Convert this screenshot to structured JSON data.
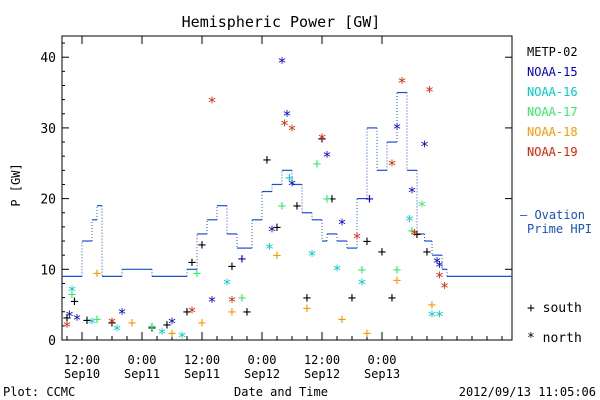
{
  "chart_data": {
    "type": "scatter",
    "title": "Hemispheric Power [GW]",
    "xlabel": "Date and Time",
    "ylabel": "P [GW]",
    "xlim": [
      "2012-09-10 08:00",
      "2012-09-14 02:00"
    ],
    "ylim": [
      0,
      43
    ],
    "yticks": [
      0,
      10,
      20,
      30,
      40
    ],
    "xticks": [
      {
        "time": "2012-09-10 12:00",
        "line1": "12:00",
        "line2": "Sep10"
      },
      {
        "time": "2012-09-11 00:00",
        "line1": "0:00",
        "line2": "Sep11"
      },
      {
        "time": "2012-09-11 12:00",
        "line1": "12:00",
        "line2": "Sep11"
      },
      {
        "time": "2012-09-12 00:00",
        "line1": "0:00",
        "line2": "Sep12"
      },
      {
        "time": "2012-09-12 12:00",
        "line1": "12:00",
        "line2": "Sep12"
      },
      {
        "time": "2012-09-13 00:00",
        "line1": "0:00",
        "line2": "Sep13"
      }
    ],
    "marker_legend": [
      {
        "symbol": "+",
        "label": "south"
      },
      {
        "symbol": "*",
        "label": "north"
      }
    ],
    "series": [
      {
        "name": "METP-02",
        "color": "#000000",
        "points": [
          [
            "2012-09-10 09:00",
            3.2,
            "+"
          ],
          [
            "2012-09-10 10:30",
            5.5,
            "+"
          ],
          [
            "2012-09-10 13:00",
            2.8,
            "+"
          ],
          [
            "2012-09-10 18:00",
            2.5,
            "+"
          ],
          [
            "2012-09-11 02:00",
            1.8,
            "+"
          ],
          [
            "2012-09-11 05:00",
            2.2,
            "+"
          ],
          [
            "2012-09-11 09:00",
            4.0,
            "+"
          ],
          [
            "2012-09-11 10:00",
            11.0,
            "+"
          ],
          [
            "2012-09-11 12:00",
            13.5,
            "+"
          ],
          [
            "2012-09-11 18:00",
            10.5,
            "+"
          ],
          [
            "2012-09-11 21:00",
            4.0,
            "+"
          ],
          [
            "2012-09-12 01:00",
            25.5,
            "+"
          ],
          [
            "2012-09-12 03:00",
            16.0,
            "+"
          ],
          [
            "2012-09-12 07:00",
            19.0,
            "+"
          ],
          [
            "2012-09-12 09:00",
            6.0,
            "+"
          ],
          [
            "2012-09-12 12:00",
            28.5,
            "+"
          ],
          [
            "2012-09-12 14:00",
            20.0,
            "+"
          ],
          [
            "2012-09-12 18:00",
            6.0,
            "+"
          ],
          [
            "2012-09-12 21:00",
            14.0,
            "+"
          ],
          [
            "2012-09-13 00:00",
            12.5,
            "+"
          ],
          [
            "2012-09-13 02:00",
            6.0,
            "+"
          ],
          [
            "2012-09-13 07:00",
            15.0,
            "+"
          ],
          [
            "2012-09-13 09:00",
            12.5,
            "+"
          ]
        ]
      },
      {
        "name": "NOAA-15",
        "color": "#0000cc",
        "points": [
          [
            "2012-09-10 09:30",
            3.5,
            "*"
          ],
          [
            "2012-09-10 11:00",
            3.0,
            "*"
          ],
          [
            "2012-09-10 20:00",
            3.8,
            "*"
          ],
          [
            "2012-09-11 06:00",
            2.5,
            "*"
          ],
          [
            "2012-09-11 14:00",
            5.5,
            "*"
          ],
          [
            "2012-09-11 20:00",
            11.5,
            "+"
          ],
          [
            "2012-09-12 02:00",
            15.5,
            "*"
          ],
          [
            "2012-09-12 04:00",
            39.3,
            "*"
          ],
          [
            "2012-09-12 05:00",
            31.8,
            "*"
          ],
          [
            "2012-09-12 06:00",
            22.0,
            "*"
          ],
          [
            "2012-09-12 13:00",
            26.0,
            "*"
          ],
          [
            "2012-09-12 16:00",
            16.5,
            "*"
          ],
          [
            "2012-09-12 21:30",
            20.0,
            "+"
          ],
          [
            "2012-09-13 03:00",
            30.0,
            "*"
          ],
          [
            "2012-09-13 06:00",
            21.0,
            "*"
          ],
          [
            "2012-09-13 08:30",
            27.5,
            "*"
          ],
          [
            "2012-09-13 11:00",
            11.0,
            "*"
          ],
          [
            "2012-09-13 11:30",
            10.5,
            "*"
          ]
        ]
      },
      {
        "name": "NOAA-16",
        "color": "#00cccc",
        "points": [
          [
            "2012-09-10 10:00",
            7.0,
            "*"
          ],
          [
            "2012-09-10 14:00",
            2.5,
            "*"
          ],
          [
            "2012-09-10 19:00",
            1.5,
            "*"
          ],
          [
            "2012-09-11 04:00",
            1.0,
            "*"
          ],
          [
            "2012-09-11 08:00",
            0.5,
            "*"
          ],
          [
            "2012-09-11 17:00",
            8.0,
            "*"
          ],
          [
            "2012-09-12 01:30",
            13.0,
            "*"
          ],
          [
            "2012-09-12 05:30",
            23.0,
            "+"
          ],
          [
            "2012-09-12 10:00",
            12.0,
            "*"
          ],
          [
            "2012-09-12 15:00",
            10.0,
            "*"
          ],
          [
            "2012-09-12 20:00",
            8.0,
            "*"
          ],
          [
            "2012-09-13 05:30",
            17.0,
            "*"
          ],
          [
            "2012-09-13 10:00",
            3.5,
            "*"
          ],
          [
            "2012-09-13 11:30",
            3.5,
            "*"
          ]
        ]
      },
      {
        "name": "NOAA-17",
        "color": "#33ee66",
        "points": [
          [
            "2012-09-10 10:00",
            6.5,
            "+"
          ],
          [
            "2012-09-10 15:00",
            3.0,
            "+"
          ],
          [
            "2012-09-11 02:00",
            2.0,
            "+"
          ],
          [
            "2012-09-11 11:00",
            9.5,
            "+"
          ],
          [
            "2012-09-11 20:00",
            6.0,
            "+"
          ],
          [
            "2012-09-12 04:00",
            19.0,
            "+"
          ],
          [
            "2012-09-12 11:00",
            25.0,
            "+"
          ],
          [
            "2012-09-12 13:00",
            20.0,
            "+"
          ],
          [
            "2012-09-12 20:00",
            10.0,
            "+"
          ],
          [
            "2012-09-13 03:00",
            10.0,
            "+"
          ],
          [
            "2012-09-13 06:00",
            15.5,
            "+"
          ],
          [
            "2012-09-13 08:00",
            19.0,
            "*"
          ]
        ]
      },
      {
        "name": "NOAA-18",
        "color": "#ff9900",
        "points": [
          [
            "2012-09-10 15:00",
            9.5,
            "+"
          ],
          [
            "2012-09-10 22:00",
            2.5,
            "+"
          ],
          [
            "2012-09-11 06:00",
            1.0,
            "+"
          ],
          [
            "2012-09-11 12:00",
            2.5,
            "+"
          ],
          [
            "2012-09-11 18:00",
            4.0,
            "+"
          ],
          [
            "2012-09-12 03:00",
            12.0,
            "+"
          ],
          [
            "2012-09-12 09:00",
            4.5,
            "+"
          ],
          [
            "2012-09-12 16:00",
            3.0,
            "+"
          ],
          [
            "2012-09-12 21:00",
            1.0,
            "+"
          ],
          [
            "2012-09-13 03:00",
            8.5,
            "+"
          ],
          [
            "2012-09-13 10:00",
            5.0,
            "+"
          ]
        ]
      },
      {
        "name": "NOAA-19",
        "color": "#dd2200",
        "points": [
          [
            "2012-09-10 09:00",
            2.0,
            "*"
          ],
          [
            "2012-09-10 18:00",
            2.5,
            "*"
          ],
          [
            "2012-09-11 10:00",
            4.0,
            "*"
          ],
          [
            "2012-09-11 14:00",
            33.7,
            "*"
          ],
          [
            "2012-09-11 18:00",
            5.5,
            "*"
          ],
          [
            "2012-09-12 04:30",
            30.5,
            "*"
          ],
          [
            "2012-09-12 06:00",
            29.8,
            "*"
          ],
          [
            "2012-09-12 12:00",
            28.5,
            "*"
          ],
          [
            "2012-09-12 19:00",
            14.5,
            "*"
          ],
          [
            "2012-09-13 02:00",
            24.8,
            "*"
          ],
          [
            "2012-09-13 04:00",
            36.5,
            "*"
          ],
          [
            "2012-09-13 06:30",
            15.0,
            "*"
          ],
          [
            "2012-09-13 09:30",
            35.2,
            "*"
          ],
          [
            "2012-09-13 11:30",
            9.0,
            "*"
          ],
          [
            "2012-09-13 12:30",
            7.5,
            "*"
          ]
        ]
      }
    ],
    "hpi_series": {
      "name": "Ovation Prime HPI",
      "legend_marker": "–",
      "color": "#1a4fd0",
      "steps": [
        [
          "2012-09-10 08:00",
          9
        ],
        [
          "2012-09-10 12:00",
          14
        ],
        [
          "2012-09-10 14:00",
          17
        ],
        [
          "2012-09-10 15:00",
          19
        ],
        [
          "2012-09-10 16:00",
          9
        ],
        [
          "2012-09-10 20:00",
          10
        ],
        [
          "2012-09-11 02:00",
          9
        ],
        [
          "2012-09-11 09:00",
          10
        ],
        [
          "2012-09-11 11:00",
          15
        ],
        [
          "2012-09-11 13:00",
          17
        ],
        [
          "2012-09-11 15:00",
          19
        ],
        [
          "2012-09-11 17:00",
          15
        ],
        [
          "2012-09-11 19:00",
          13
        ],
        [
          "2012-09-11 22:00",
          17
        ],
        [
          "2012-09-12 00:00",
          21
        ],
        [
          "2012-09-12 02:00",
          22
        ],
        [
          "2012-09-12 04:00",
          24
        ],
        [
          "2012-09-12 06:00",
          22
        ],
        [
          "2012-09-12 08:00",
          18
        ],
        [
          "2012-09-12 10:00",
          17
        ],
        [
          "2012-09-12 12:00",
          14
        ],
        [
          "2012-09-12 13:00",
          15
        ],
        [
          "2012-09-12 15:00",
          14
        ],
        [
          "2012-09-12 17:00",
          13
        ],
        [
          "2012-09-12 19:00",
          20
        ],
        [
          "2012-09-12 21:00",
          30
        ],
        [
          "2012-09-12 23:00",
          24
        ],
        [
          "2012-09-13 01:00",
          28
        ],
        [
          "2012-09-13 03:00",
          35
        ],
        [
          "2012-09-13 05:00",
          24
        ],
        [
          "2012-09-13 07:00",
          15
        ],
        [
          "2012-09-13 08:30",
          14
        ],
        [
          "2012-09-13 10:00",
          12
        ],
        [
          "2012-09-13 12:00",
          10
        ],
        [
          "2012-09-13 13:00",
          9
        ],
        [
          "2012-09-14 02:00",
          9
        ]
      ]
    },
    "footer": {
      "left": "Plot: CCMC",
      "right": "2012/09/13 11:05:06"
    }
  }
}
